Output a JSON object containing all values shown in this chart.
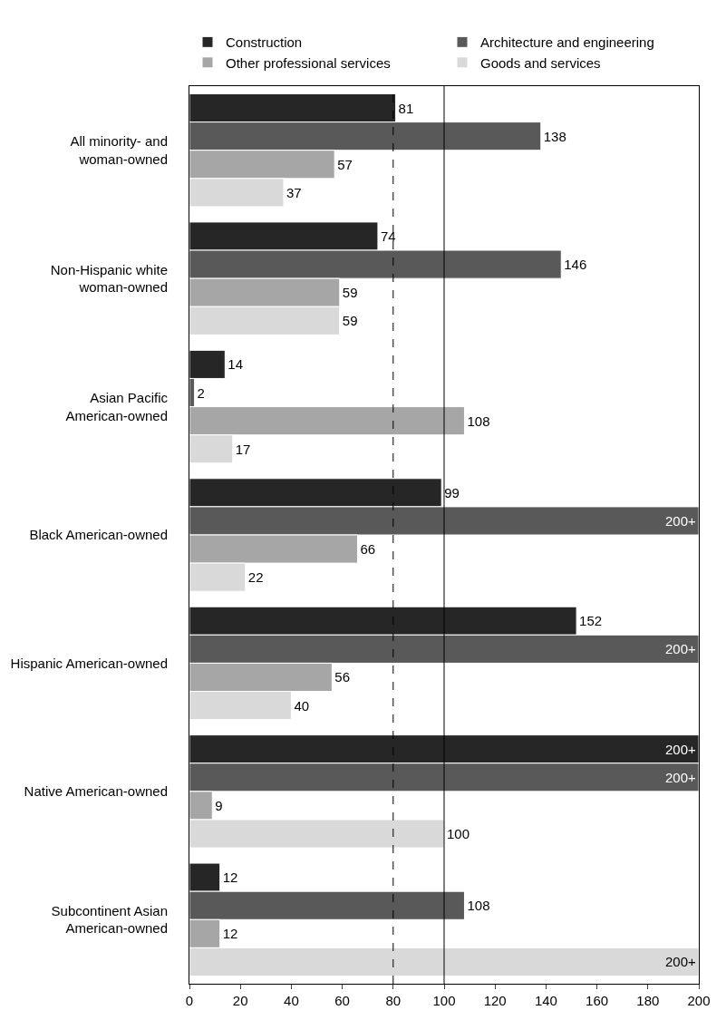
{
  "chart_data": {
    "type": "bar",
    "orientation": "horizontal",
    "categories": [
      "All minority- and woman-owned",
      "Non-Hispanic white woman-owned",
      "Asian Pacific American-owned",
      "Black American-owned",
      "Hispanic American-owned",
      "Native American-owned",
      "Subcontinent Asian American-owned"
    ],
    "series": [
      {
        "name": "Construction",
        "color": "#262626",
        "values": [
          81,
          74,
          14,
          99,
          152,
          200,
          12
        ],
        "value_labels": [
          "81",
          "74",
          "14",
          "99",
          "152",
          "200+",
          "12"
        ]
      },
      {
        "name": "Architecture and engineering",
        "color": "#595959",
        "values": [
          138,
          146,
          2,
          200,
          200,
          200,
          108
        ],
        "value_labels": [
          "138",
          "146",
          "2",
          "200+",
          "200+",
          "200+",
          "108"
        ]
      },
      {
        "name": "Other professional services",
        "color": "#a6a6a6",
        "values": [
          57,
          59,
          108,
          66,
          56,
          9,
          12
        ],
        "value_labels": [
          "57",
          "59",
          "108",
          "66",
          "56",
          "9",
          "12"
        ]
      },
      {
        "name": "Goods and services",
        "color": "#d9d9d9",
        "values": [
          37,
          59,
          17,
          22,
          40,
          100,
          200
        ],
        "value_labels": [
          "37",
          "59",
          "17",
          "22",
          "40",
          "100",
          "200+"
        ]
      }
    ],
    "xlim": [
      0,
      200
    ],
    "xticks": [
      0,
      20,
      40,
      60,
      80,
      100,
      120,
      140,
      160,
      180,
      200
    ],
    "ref_lines": [
      {
        "axis": "x",
        "value": 80,
        "line_style": "dashed",
        "color": "#000000"
      },
      {
        "axis": "x",
        "value": 100,
        "line_style": "solid",
        "color": "#000000"
      }
    ],
    "grid": false,
    "legend": "top"
  }
}
